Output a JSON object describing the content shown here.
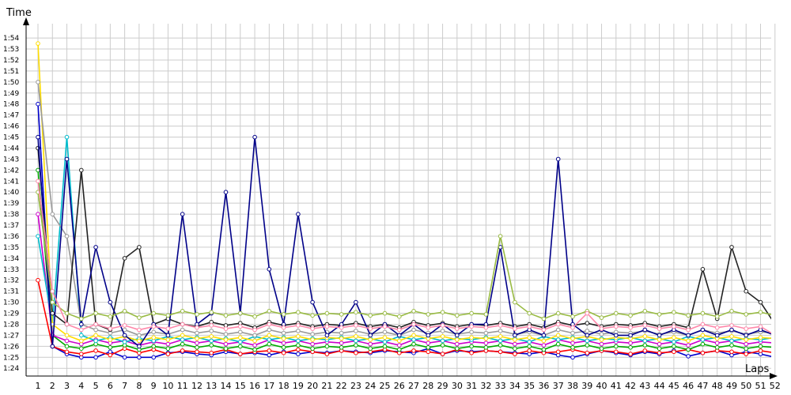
{
  "chart_data": {
    "type": "line",
    "title": "",
    "xlabel": "Laps",
    "ylabel": "Time",
    "x_ticks": [
      "1",
      "2",
      "3",
      "4",
      "5",
      "6",
      "7",
      "8",
      "9",
      "10",
      "11",
      "12",
      "13",
      "14",
      "15",
      "16",
      "17",
      "18",
      "19",
      "20",
      "21",
      "22",
      "23",
      "24",
      "25",
      "26",
      "27",
      "28",
      "29",
      "30",
      "31",
      "32",
      "33",
      "34",
      "35",
      "36",
      "37",
      "38",
      "39",
      "40",
      "41",
      "42",
      "43",
      "44",
      "45",
      "46",
      "47",
      "48",
      "49",
      "50",
      "51",
      "52"
    ],
    "y_ticks": [
      "1:24",
      "1:25",
      "1:26",
      "1:27",
      "1:28",
      "1:29",
      "1:30",
      "1:31",
      "1:32",
      "1:33",
      "1:34",
      "1:35",
      "1:36",
      "1:37",
      "1:38",
      "1:39",
      "1:40",
      "1:41",
      "1:42",
      "1:43",
      "1:44",
      "1:45",
      "1:46",
      "1:47",
      "1:48",
      "1:49",
      "1:50",
      "1:51",
      "1:52",
      "1:53",
      "1:54"
    ],
    "y_unit": "seconds",
    "xlim": [
      1,
      52
    ],
    "ylim": [
      83.3,
      115.3
    ],
    "grid": true,
    "legend": "none",
    "series": [
      {
        "color": "#0000cc",
        "values": [
          108,
          86,
          85.3,
          85,
          85,
          85.5,
          85,
          85,
          85,
          85.4,
          85.5,
          85.3,
          85.2,
          85.5,
          85.3,
          85.4,
          85.2,
          85.5,
          85.3,
          85.5,
          85.4,
          85.6,
          85.5,
          85.4,
          85.6,
          85.5,
          85.4,
          85.8,
          85.3,
          85.6,
          85.5,
          85.6,
          85.5,
          85.4,
          85.3,
          85.5,
          85.2,
          85,
          85.3,
          85.6,
          85.4,
          85.2,
          85.5,
          85.3,
          85.6,
          85.1,
          85.4,
          85.6,
          85.2,
          85.5,
          85.3,
          85
        ]
      },
      {
        "color": "#ff0000",
        "values": [
          92,
          86,
          85.5,
          85.3,
          85.6,
          85.2,
          85.8,
          85.4,
          85.7,
          85.3,
          85.6,
          85.5,
          85.4,
          85.7,
          85.3,
          85.5,
          85.6,
          85.4,
          85.7,
          85.5,
          85.3,
          85.6,
          85.4,
          85.5,
          85.7,
          85.4,
          85.6,
          85.5,
          85.3,
          85.7,
          85.4,
          85.6,
          85.5,
          85.3,
          85.6,
          85.4,
          85.5,
          85.7,
          85.4,
          85.6,
          85.5,
          85.3,
          85.6,
          85.4,
          85.5,
          85.7,
          85.4,
          85.6,
          85.5,
          85.3,
          85.6,
          85.4
        ]
      },
      {
        "color": "#00aa00",
        "values": [
          102,
          87,
          86,
          85.8,
          86.2,
          85.9,
          86.1,
          85.7,
          86,
          85.8,
          86.2,
          85.9,
          86.1,
          85.8,
          86,
          85.7,
          86.2,
          85.9,
          86.1,
          85.8,
          86,
          85.9,
          86.1,
          85.8,
          86,
          85.7,
          86.2,
          85.9,
          86.1,
          85.8,
          86,
          85.9,
          86.1,
          85.8,
          86,
          85.7,
          86.2,
          85.9,
          86.1,
          85.8,
          86,
          85.9,
          86.1,
          85.8,
          86,
          85.7,
          86.2,
          85.9,
          86.1,
          85.8,
          86,
          85.9
        ]
      },
      {
        "color": "#cc00cc",
        "values": [
          98,
          87,
          86.5,
          86.2,
          86.6,
          86.3,
          86.5,
          86.1,
          86.4,
          86.2,
          86.6,
          86.3,
          86.5,
          86.2,
          86.4,
          86.1,
          86.6,
          86.3,
          86.5,
          86.2,
          86.4,
          86.3,
          86.5,
          86.2,
          86.4,
          86.1,
          86.6,
          86.3,
          86.5,
          86.2,
          86.4,
          86.3,
          86.5,
          86.2,
          86.4,
          86.1,
          86.6,
          86.3,
          86.5,
          86.2,
          86.4,
          86.3,
          86.5,
          86.2,
          86.4,
          86.1,
          86.6,
          86.3,
          86.5,
          86.2,
          86.4,
          86.3
        ]
      },
      {
        "color": "#00bbcc",
        "values": [
          96,
          88,
          105,
          87,
          86.5,
          86.8,
          86.4,
          86.7,
          86.5,
          86.9,
          86.6,
          86.8,
          86.5,
          86.7,
          86.4,
          86.9,
          86.6,
          86.8,
          86.5,
          86.7,
          86.6,
          86.8,
          86.5,
          86.7,
          86.4,
          86.9,
          86.6,
          86.8,
          86.5,
          86.7,
          86.6,
          86.8,
          86.5,
          86.7,
          86.4,
          86.9,
          86.6,
          86.8,
          86.5,
          86.7,
          86.6,
          86.8,
          86.5,
          86.7,
          86.4,
          86.9,
          86.6,
          86.8,
          86.5,
          86.7,
          86.6,
          86.8
        ]
      },
      {
        "color": "#ffdd00",
        "values": [
          113.5,
          88,
          87,
          86.5,
          87,
          86.6,
          86.9,
          86.5,
          86.8,
          86.6,
          87,
          86.7,
          86.9,
          86.6,
          86.8,
          86.5,
          87,
          86.7,
          86.9,
          86.6,
          86.8,
          86.7,
          86.9,
          86.6,
          86.8,
          86.5,
          87,
          86.7,
          86.9,
          86.6,
          86.8,
          86.7,
          86.9,
          86.6,
          86.8,
          86.5,
          87,
          86.7,
          86.9,
          86.6,
          86.8,
          86.7,
          86.9,
          86.6,
          86.8,
          86.5,
          87,
          86.7,
          86.9,
          86.6,
          86.8,
          86.7
        ]
      },
      {
        "color": "#999999",
        "values": [
          110,
          98,
          96,
          88,
          87.5,
          87.2,
          87.5,
          87,
          87.3,
          87.1,
          87.5,
          87.2,
          87.4,
          87.1,
          87.3,
          87,
          87.5,
          87.2,
          87.4,
          87.1,
          87.3,
          87.2,
          87.4,
          87.1,
          87.3,
          87,
          87.5,
          87.2,
          87.4,
          87.1,
          87.3,
          87.2,
          87.4,
          87.1,
          87.3,
          87,
          87.5,
          87.2,
          87.4,
          87.1,
          87.3,
          87.2,
          87.4,
          87.1,
          87.3,
          87,
          87.5,
          87.2,
          87.4,
          87.1,
          87.3,
          87.2
        ]
      },
      {
        "color": "#222222",
        "values": [
          104,
          89,
          88,
          102,
          88,
          87.5,
          94,
          95,
          88,
          88.5,
          88,
          87.8,
          88.2,
          87.9,
          88.1,
          87.7,
          88.2,
          87.9,
          88.1,
          87.8,
          88,
          87.9,
          88.1,
          87.8,
          88,
          87.7,
          88.2,
          87.9,
          88.1,
          87.8,
          88,
          87.9,
          88.1,
          87.8,
          88,
          87.7,
          88.2,
          87.9,
          88.1,
          87.8,
          88,
          87.9,
          88.1,
          87.8,
          88,
          87.7,
          93,
          88.5,
          95,
          91,
          90,
          88
        ]
      },
      {
        "color": "#000088",
        "values": [
          105,
          86,
          103,
          88,
          95,
          90,
          87,
          86,
          88,
          87,
          98,
          88,
          89,
          100,
          89,
          105,
          93,
          88,
          98,
          90,
          87,
          88,
          90,
          87,
          88,
          87,
          88,
          87,
          88,
          87,
          88,
          88,
          95,
          87,
          87.5,
          87,
          103,
          88,
          87,
          87.5,
          87,
          87,
          87.5,
          87,
          87.5,
          87,
          87.5,
          87,
          87.5,
          87,
          87.5,
          87
        ]
      },
      {
        "color": "#99bb44",
        "values": [
          100,
          90,
          89,
          88.5,
          89,
          88.7,
          89.2,
          88.6,
          89,
          88.8,
          89.2,
          88.9,
          89.1,
          88.8,
          89,
          88.7,
          89.2,
          88.9,
          89.1,
          88.8,
          89,
          88.9,
          89.1,
          88.8,
          89,
          88.7,
          89.2,
          88.9,
          89.1,
          88.8,
          89,
          88.9,
          96,
          90,
          89,
          88.5,
          89,
          88.7,
          89.2,
          88.6,
          89,
          88.8,
          89.2,
          88.9,
          89.1,
          88.8,
          89,
          88.7,
          89.2,
          88.9,
          89.1,
          88.8
        ]
      },
      {
        "color": "#ff88aa",
        "values": [
          101,
          91,
          88,
          87.5,
          88,
          87.6,
          87.9,
          87.5,
          87.8,
          87.6,
          88,
          87.7,
          87.9,
          87.6,
          87.8,
          87.5,
          88,
          87.7,
          87.9,
          87.6,
          87.8,
          87.7,
          87.9,
          87.6,
          87.8,
          87.5,
          88,
          87.7,
          87.9,
          87.6,
          87.8,
          87.7,
          87.9,
          87.6,
          87.8,
          87.5,
          88,
          87.7,
          89,
          87.6,
          87.8,
          87.7,
          87.9,
          87.6,
          87.8,
          87.5,
          88,
          87.7,
          87.9,
          87.6,
          87.8,
          87
        ]
      }
    ]
  }
}
